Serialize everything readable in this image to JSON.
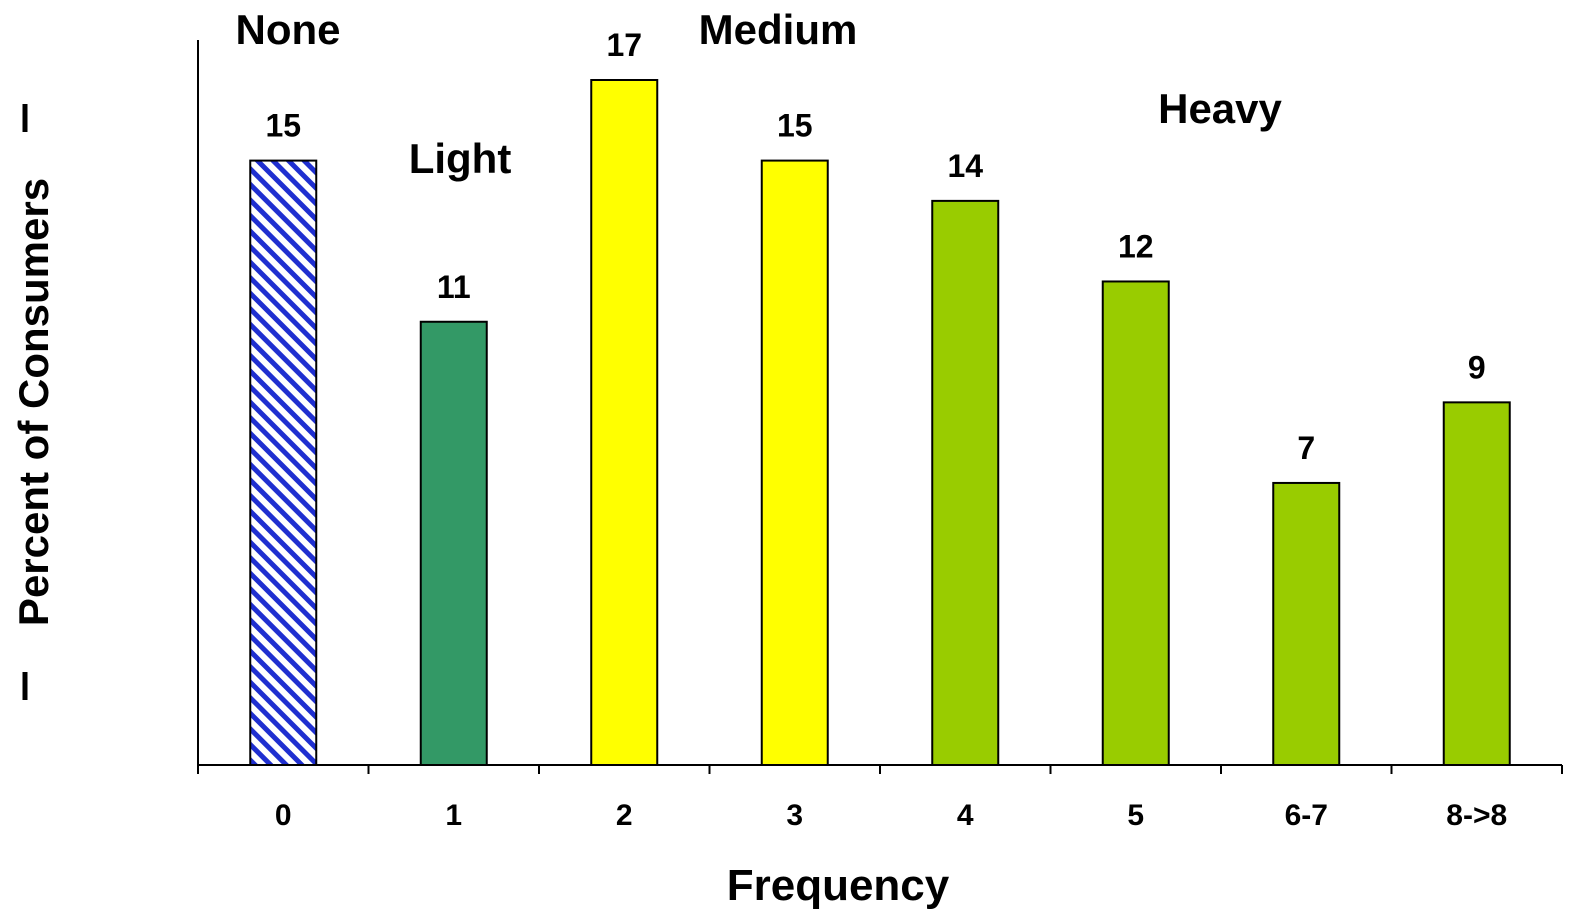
{
  "chart_data": {
    "type": "bar",
    "categories": [
      "0",
      "1",
      "2",
      "3",
      "4",
      "5",
      "6-7",
      "8->8"
    ],
    "values": [
      15,
      11,
      17,
      15,
      14,
      12,
      7,
      9
    ],
    "xlabel": "Frequency",
    "ylabel": "Percent of Consumers",
    "ylim": [
      0,
      17
    ],
    "grid": false,
    "bar_styles": [
      "hatched-blue",
      "dark-green",
      "yellow",
      "yellow",
      "lime-green",
      "lime-green",
      "lime-green",
      "lime-green"
    ],
    "colors": {
      "hatched-blue": "#1f2fd0",
      "dark-green": "#339966",
      "yellow": "#ffff00",
      "lime-green": "#99cc00"
    },
    "group_labels": [
      {
        "text": "None",
        "category": "0"
      },
      {
        "text": "Light",
        "category": "1"
      },
      {
        "text": "Medium",
        "category": "2-3"
      },
      {
        "text": "Heavy",
        "category": "5"
      }
    ]
  }
}
